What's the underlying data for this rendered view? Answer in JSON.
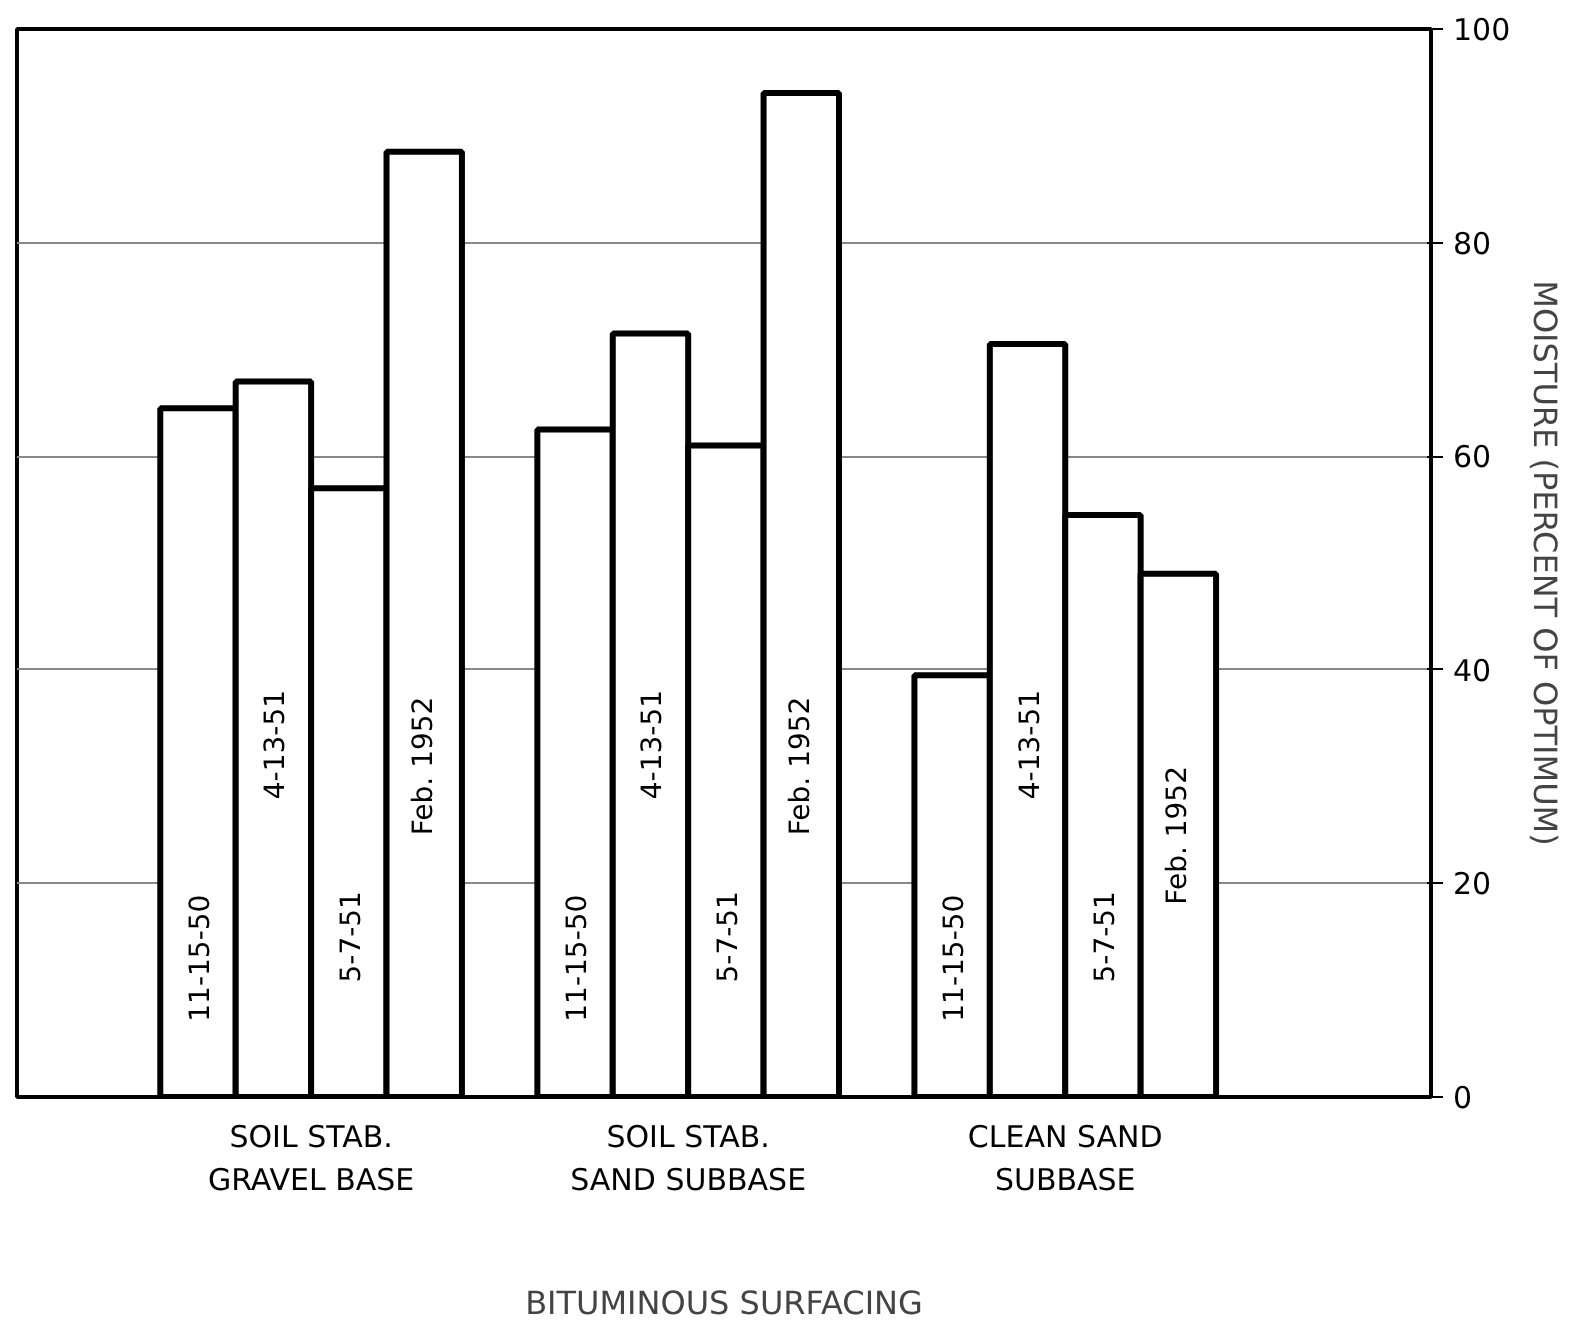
{
  "chart_data": {
    "type": "bar",
    "xlabel": "BITUMINOUS SURFACING",
    "ylabel": "MOISTURE (PERCENT OF OPTIMUM)",
    "categories": [
      "SOIL STAB.\nGRAVEL BASE",
      "SOIL STAB.\nSAND SUBBASE",
      "CLEAN SAND\nSUBBASE"
    ],
    "series": [
      {
        "name": "11-15-50",
        "color": "#ffffff",
        "values": [
          64.5,
          62.5,
          39.5
        ]
      },
      {
        "name": "4-13-51",
        "color": "#ffffff",
        "values": [
          67,
          71.5,
          70.5
        ]
      },
      {
        "name": "5-7-51",
        "color": "#ffffff",
        "values": [
          57,
          61,
          54.5
        ]
      },
      {
        "name": "Feb. 1952",
        "color": "#ffffff",
        "values": [
          88.5,
          94,
          49
        ]
      }
    ],
    "ylim": [
      0,
      100
    ],
    "yticks": [
      0,
      20,
      40,
      60,
      80,
      100
    ],
    "grid": "y"
  }
}
